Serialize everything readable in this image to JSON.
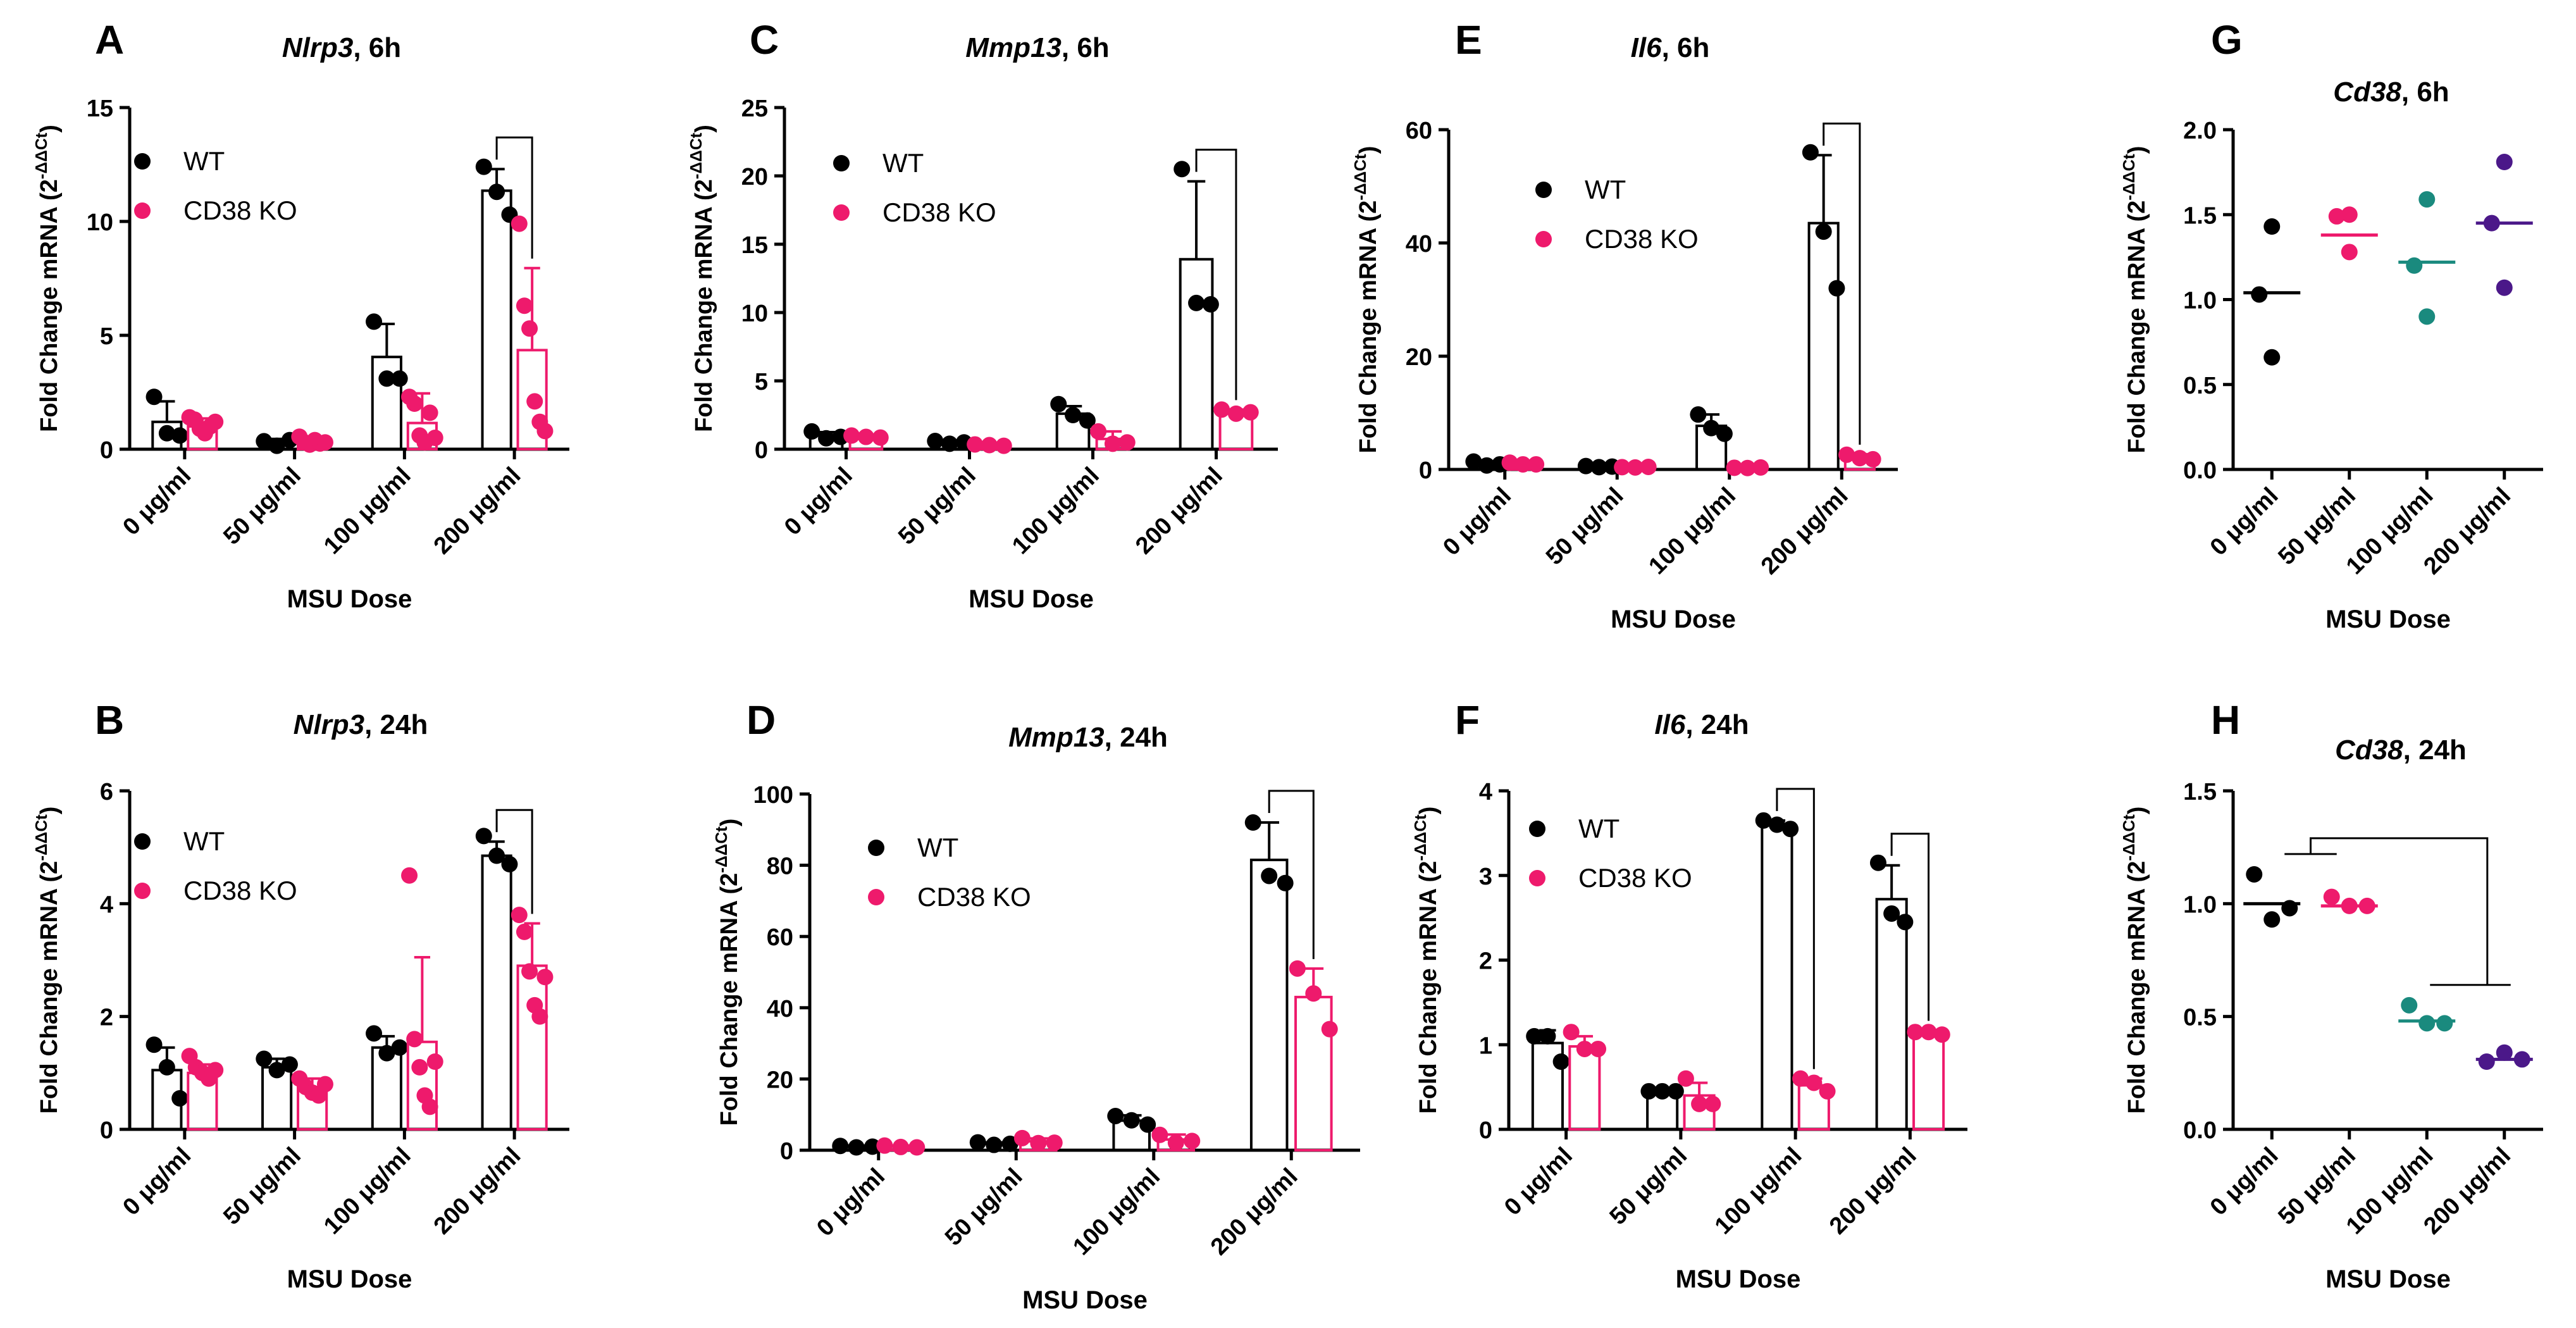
{
  "figure": {
    "colors": {
      "wt": "#000000",
      "ko": "#ee1a6c",
      "teal": "#1a8a7e",
      "purple": "#4b1889",
      "axis": "#000000"
    },
    "xlabel": "MSU Dose",
    "legend": {
      "wt": "WT",
      "ko": "CD38 KO"
    },
    "ylabel_main": "Fold Change mRNA (2",
    "ylabel_sup": "-ΔΔCt",
    "ylabel_close": ")"
  },
  "chart_data": [
    {
      "panel": "A",
      "gene": "Nlrp3",
      "time": ", 6h",
      "type": "bar",
      "categories": [
        "0 μg/ml",
        "50 μg/ml",
        "100 μg/ml",
        "200 μg/ml"
      ],
      "ylim": [
        0,
        15
      ],
      "yticks": [
        0,
        5,
        10,
        15
      ],
      "tick_labels": [
        "0",
        "5",
        "10",
        "15"
      ],
      "legend": true,
      "series": [
        {
          "name": "WT",
          "values": [
            1.2,
            0.3,
            4.05,
            11.35
          ],
          "sd": [
            0.9,
            0.15,
            1.45,
            0.95
          ],
          "points": [
            [
              2.3,
              0.7,
              0.6
            ],
            [
              0.35,
              0.15,
              0.4
            ],
            [
              5.6,
              3.1,
              3.1
            ],
            [
              12.4,
              11.3,
              10.3
            ]
          ]
        },
        {
          "name": "CD38 KO",
          "values": [
            1.0,
            0.35,
            1.15,
            4.35
          ],
          "sd": [
            0.35,
            0.2,
            1.3,
            3.6
          ],
          "points": [
            [
              1.4,
              1.3,
              0.9,
              0.7,
              1.0,
              1.2
            ],
            [
              0.55,
              0.3,
              0.2,
              0.4,
              0.25,
              0.3
            ],
            [
              2.3,
              2.0,
              0.6,
              0.3,
              1.6,
              0.5
            ],
            [
              9.9,
              6.3,
              5.3,
              2.1,
              1.2,
              0.8
            ]
          ]
        }
      ],
      "brackets": [
        {
          "x1": 3,
          "x2": 3,
          "kind": "pair"
        }
      ]
    },
    {
      "panel": "B",
      "gene": "Nlrp3",
      "time": ", 24h",
      "type": "bar",
      "categories": [
        "0 μg/ml",
        "50 μg/ml",
        "100 μg/ml",
        "200 μg/ml"
      ],
      "ylim": [
        0,
        6
      ],
      "yticks": [
        0,
        2,
        4,
        6
      ],
      "tick_labels": [
        "0",
        "2",
        "4",
        "6"
      ],
      "legend": true,
      "series": [
        {
          "name": "WT",
          "values": [
            1.05,
            1.1,
            1.45,
            4.85
          ],
          "sd": [
            0.4,
            0.15,
            0.2,
            0.25
          ],
          "points": [
            [
              1.5,
              1.1,
              0.55
            ],
            [
              1.25,
              1.05,
              1.15
            ],
            [
              1.7,
              1.35,
              1.45
            ],
            [
              5.2,
              4.85,
              4.7
            ]
          ]
        },
        {
          "name": "CD38 KO",
          "values": [
            1.0,
            0.75,
            1.55,
            2.9
          ],
          "sd": [
            0.15,
            0.15,
            1.5,
            0.75
          ],
          "points": [
            [
              1.3,
              1.1,
              1.0,
              0.9,
              1.05
            ],
            [
              0.9,
              0.75,
              0.65,
              0.6,
              0.8
            ],
            [
              4.5,
              1.6,
              1.1,
              0.6,
              0.4,
              1.2
            ],
            [
              3.8,
              3.5,
              2.8,
              2.2,
              2.0,
              2.7
            ]
          ]
        }
      ],
      "brackets": [
        {
          "x1": 3,
          "x2": 3,
          "kind": "pair"
        }
      ]
    },
    {
      "panel": "C",
      "gene": "Mmp13",
      "time": ", 6h",
      "type": "bar",
      "categories": [
        "0 μg/ml",
        "50 μg/ml",
        "100 μg/ml",
        "200 μg/ml"
      ],
      "ylim": [
        0,
        25
      ],
      "yticks": [
        0,
        5,
        10,
        15,
        20,
        25
      ],
      "tick_labels": [
        "0",
        "5",
        "10",
        "15",
        "20",
        "25"
      ],
      "legend": true,
      "series": [
        {
          "name": "WT",
          "values": [
            1.0,
            0.5,
            2.6,
            13.9
          ],
          "sd": [
            0.25,
            0.1,
            0.55,
            5.7
          ],
          "points": [
            [
              1.3,
              0.8,
              0.9
            ],
            [
              0.6,
              0.4,
              0.5
            ],
            [
              3.3,
              2.5,
              2.1
            ],
            [
              20.5,
              10.7,
              10.6
            ]
          ]
        },
        {
          "name": "CD38 KO",
          "values": [
            0.9,
            0.3,
            0.75,
            2.7
          ],
          "sd": [
            0.1,
            0.05,
            0.55,
            0.2
          ],
          "points": [
            [
              1.0,
              0.9,
              0.85
            ],
            [
              0.35,
              0.3,
              0.25
            ],
            [
              1.3,
              0.4,
              0.5
            ],
            [
              2.9,
              2.6,
              2.7
            ]
          ]
        }
      ],
      "brackets": [
        {
          "x1": 3,
          "x2": 3,
          "kind": "pair"
        }
      ]
    },
    {
      "panel": "D",
      "gene": "Mmp13",
      "time": ", 24h",
      "type": "bar",
      "categories": [
        "0 μg/ml",
        "50 μg/ml",
        "100 μg/ml",
        "200 μg/ml"
      ],
      "ylim": [
        0,
        100
      ],
      "yticks": [
        0,
        20,
        40,
        60,
        80,
        100
      ],
      "tick_labels": [
        "0",
        "20",
        "40",
        "60",
        "80",
        "100"
      ],
      "legend": true,
      "series": [
        {
          "name": "WT",
          "values": [
            1.0,
            1.8,
            8.3,
            81.5
          ],
          "sd": [
            0.3,
            0.4,
            1.5,
            10.5
          ],
          "points": [
            [
              1.2,
              0.8,
              1.0
            ],
            [
              2.2,
              1.5,
              1.8
            ],
            [
              9.6,
              8.4,
              7.2
            ],
            [
              92.0,
              77.0,
              75.0
            ]
          ]
        },
        {
          "name": "CD38 KO",
          "values": [
            1.0,
            2.5,
            3.0,
            43.0
          ],
          "sd": [
            0.3,
            0.8,
            1.4,
            8.0
          ],
          "points": [
            [
              1.3,
              0.9,
              0.8
            ],
            [
              3.4,
              2.0,
              2.1
            ],
            [
              4.3,
              2.1,
              2.6
            ],
            [
              51.0,
              44.0,
              34.0
            ]
          ]
        }
      ],
      "brackets": [
        {
          "x1": 3,
          "x2": 3,
          "kind": "pair"
        }
      ]
    },
    {
      "panel": "E",
      "gene": "Il6",
      "time": ", 6h",
      "type": "bar",
      "categories": [
        "0 μg/ml",
        "50 μg/ml",
        "100 μg/ml",
        "200 μg/ml"
      ],
      "ylim": [
        0,
        60
      ],
      "yticks": [
        0,
        20,
        40,
        60
      ],
      "tick_labels": [
        "0",
        "20",
        "40",
        "60"
      ],
      "legend": true,
      "series": [
        {
          "name": "WT",
          "values": [
            1.0,
            0.5,
            7.7,
            43.5
          ],
          "sd": [
            0.4,
            0.2,
            2.0,
            12.0
          ],
          "points": [
            [
              1.4,
              0.7,
              0.9
            ],
            [
              0.6,
              0.4,
              0.5
            ],
            [
              9.7,
              7.3,
              6.3
            ],
            [
              56.0,
              42.0,
              32.0
            ]
          ]
        },
        {
          "name": "CD38 KO",
          "values": [
            1.0,
            0.4,
            0.3,
            2.2
          ],
          "sd": [
            0.2,
            0.1,
            0.1,
            0.5
          ],
          "points": [
            [
              1.2,
              0.9,
              0.9
            ],
            [
              0.4,
              0.35,
              0.45
            ],
            [
              0.3,
              0.25,
              0.35
            ],
            [
              2.6,
              2.0,
              1.8
            ]
          ]
        }
      ],
      "brackets": [
        {
          "x1": 3,
          "x2": 3,
          "kind": "pair"
        }
      ]
    },
    {
      "panel": "F",
      "gene": "Il6",
      "time": ", 24h",
      "type": "bar",
      "categories": [
        "0 μg/ml",
        "50 μg/ml",
        "100 μg/ml",
        "200 μg/ml"
      ],
      "ylim": [
        0,
        4
      ],
      "yticks": [
        0,
        1,
        2,
        3,
        4
      ],
      "tick_labels": [
        "0",
        "1",
        "2",
        "3",
        "4"
      ],
      "legend": true,
      "series": [
        {
          "name": "WT",
          "values": [
            1.02,
            0.45,
            3.6,
            2.72
          ],
          "sd": [
            0.15,
            0.03,
            0.05,
            0.4
          ],
          "points": [
            [
              1.1,
              1.1,
              0.8
            ],
            [
              0.45,
              0.45,
              0.45
            ],
            [
              3.65,
              3.6,
              3.55
            ],
            [
              3.15,
              2.55,
              2.45
            ]
          ]
        },
        {
          "name": "CD38 KO",
          "values": [
            0.98,
            0.4,
            0.52,
            1.14
          ],
          "sd": [
            0.12,
            0.15,
            0.08,
            0.03
          ],
          "points": [
            [
              1.15,
              0.95,
              0.95
            ],
            [
              0.6,
              0.3,
              0.3
            ],
            [
              0.6,
              0.55,
              0.45
            ],
            [
              1.15,
              1.15,
              1.12
            ]
          ]
        }
      ],
      "brackets": [
        {
          "x1": 2,
          "x2": 2,
          "kind": "pair"
        },
        {
          "x1": 3,
          "x2": 3,
          "kind": "pair"
        }
      ]
    },
    {
      "panel": "G",
      "gene": "Cd38",
      "time": ", 6h",
      "type": "scatter",
      "categories": [
        "0 μg/ml",
        "50 μg/ml",
        "100 μg/ml",
        "200 μg/ml"
      ],
      "ylim": [
        0,
        2
      ],
      "yticks": [
        0,
        0.5,
        1,
        1.5,
        2
      ],
      "tick_labels": [
        "0.0",
        "0.5",
        "1.0",
        "1.5",
        "2.0"
      ],
      "legend": false,
      "groups": [
        {
          "mean": 1.04,
          "points": [
            1.43,
            1.03,
            0.66
          ],
          "color": "wt"
        },
        {
          "mean": 1.38,
          "points": [
            1.5,
            1.49,
            1.28
          ],
          "color": "ko"
        },
        {
          "mean": 1.22,
          "points": [
            1.59,
            1.2,
            0.9
          ],
          "color": "teal"
        },
        {
          "mean": 1.45,
          "points": [
            1.81,
            1.45,
            1.07
          ],
          "color": "purple"
        }
      ],
      "brackets": []
    },
    {
      "panel": "H",
      "gene": "Cd38",
      "time": ", 24h",
      "type": "scatter",
      "categories": [
        "0 μg/ml",
        "50 μg/ml",
        "100 μg/ml",
        "200 μg/ml"
      ],
      "ylim": [
        0,
        1.5
      ],
      "yticks": [
        0,
        0.5,
        1,
        1.5
      ],
      "tick_labels": [
        "0.0",
        "0.5",
        "1.0",
        "1.5"
      ],
      "legend": false,
      "groups": [
        {
          "mean": 1.0,
          "points": [
            1.13,
            0.93,
            0.98
          ],
          "color": "wt"
        },
        {
          "mean": 0.99,
          "points": [
            1.03,
            0.99,
            0.99
          ],
          "color": "ko"
        },
        {
          "mean": 0.48,
          "points": [
            0.55,
            0.47,
            0.47
          ],
          "color": "teal"
        },
        {
          "mean": 0.31,
          "points": [
            0.3,
            0.34,
            0.31
          ],
          "color": "purple"
        }
      ],
      "brackets": [
        {
          "x1": 0,
          "x2": 1,
          "kind": "nested"
        }
      ]
    }
  ]
}
